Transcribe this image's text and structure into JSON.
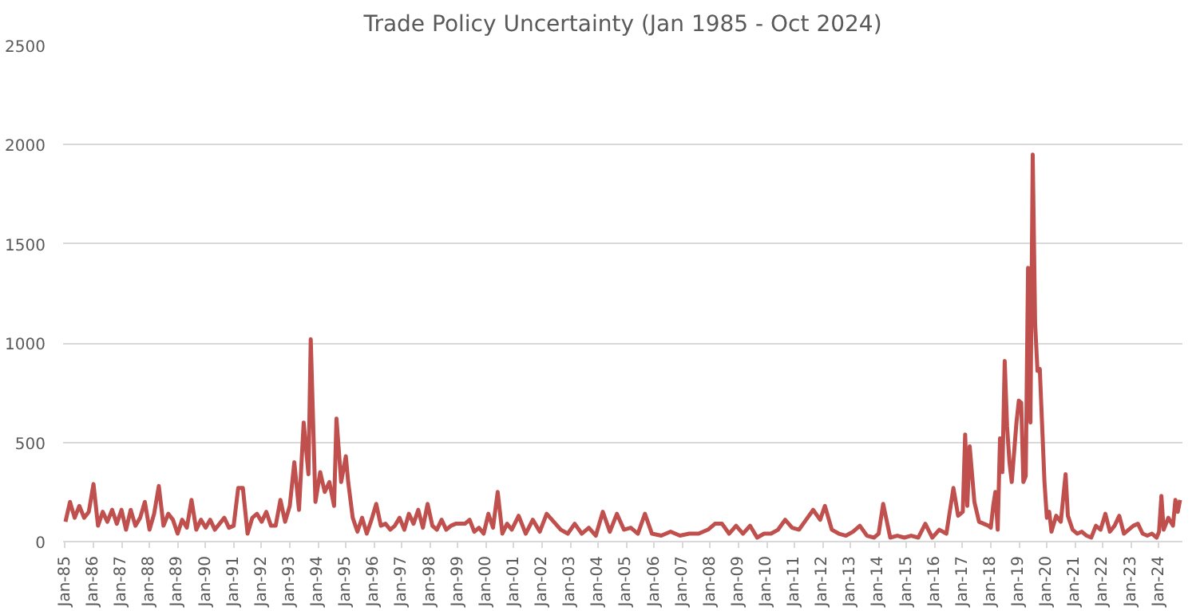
{
  "chart_data": {
    "type": "line",
    "title": "Trade Policy Uncertainty (Jan 1985 - Oct 2024)",
    "x": [
      "1985-01",
      "1985-03",
      "1985-05",
      "1985-07",
      "1985-09",
      "1985-11",
      "1986-01",
      "1986-03",
      "1986-05",
      "1986-07",
      "1986-09",
      "1986-11",
      "1987-01",
      "1987-03",
      "1987-05",
      "1987-07",
      "1987-09",
      "1987-11",
      "1988-01",
      "1988-03",
      "1988-05",
      "1988-07",
      "1988-09",
      "1988-11",
      "1989-01",
      "1989-03",
      "1989-05",
      "1989-07",
      "1989-09",
      "1989-11",
      "1990-01",
      "1990-03",
      "1990-05",
      "1990-07",
      "1990-09",
      "1990-11",
      "1991-01",
      "1991-03",
      "1991-05",
      "1991-07",
      "1991-09",
      "1991-11",
      "1992-01",
      "1992-03",
      "1992-05",
      "1992-07",
      "1992-09",
      "1992-11",
      "1993-01",
      "1993-03",
      "1993-05",
      "1993-07",
      "1993-09",
      "1993-10",
      "1993-12",
      "1994-02",
      "1994-04",
      "1994-06",
      "1994-08",
      "1994-09",
      "1994-11",
      "1995-01",
      "1995-02",
      "1995-04",
      "1995-06",
      "1995-08",
      "1995-10",
      "1995-12",
      "1996-02",
      "1996-04",
      "1996-06",
      "1996-08",
      "1996-10",
      "1996-12",
      "1997-02",
      "1997-04",
      "1997-06",
      "1997-08",
      "1997-10",
      "1997-12",
      "1998-02",
      "1998-04",
      "1998-06",
      "1998-08",
      "1998-10",
      "1998-12",
      "1999-02",
      "1999-04",
      "1999-06",
      "1999-08",
      "1999-10",
      "1999-12",
      "2000-02",
      "2000-04",
      "2000-06",
      "2000-08",
      "2000-10",
      "2000-12",
      "2001-03",
      "2001-06",
      "2001-09",
      "2001-12",
      "2002-03",
      "2002-06",
      "2002-09",
      "2002-12",
      "2003-03",
      "2003-06",
      "2003-09",
      "2003-12",
      "2004-03",
      "2004-06",
      "2004-09",
      "2004-12",
      "2005-03",
      "2005-06",
      "2005-09",
      "2005-12",
      "2006-04",
      "2006-08",
      "2006-12",
      "2007-04",
      "2007-08",
      "2007-12",
      "2008-03",
      "2008-06",
      "2008-09",
      "2008-12",
      "2009-03",
      "2009-06",
      "2009-09",
      "2009-12",
      "2010-03",
      "2010-06",
      "2010-09",
      "2010-12",
      "2011-03",
      "2011-06",
      "2011-09",
      "2011-12",
      "2012-02",
      "2012-05",
      "2012-08",
      "2012-11",
      "2013-02",
      "2013-05",
      "2013-08",
      "2013-11",
      "2014-01",
      "2014-03",
      "2014-06",
      "2014-09",
      "2014-12",
      "2015-03",
      "2015-06",
      "2015-09",
      "2015-12",
      "2016-03",
      "2016-06",
      "2016-09",
      "2016-11",
      "2017-01",
      "2017-02",
      "2017-03",
      "2017-04",
      "2017-06",
      "2017-08",
      "2017-10",
      "2017-12",
      "2018-01",
      "2018-02",
      "2018-03",
      "2018-04",
      "2018-05",
      "2018-06",
      "2018-07",
      "2018-08",
      "2018-09",
      "2018-10",
      "2018-12",
      "2019-01",
      "2019-02",
      "2019-03",
      "2019-04",
      "2019-05",
      "2019-06",
      "2019-07",
      "2019-08",
      "2019-09",
      "2019-10",
      "2019-11",
      "2019-12",
      "2020-01",
      "2020-02",
      "2020-03",
      "2020-05",
      "2020-07",
      "2020-09",
      "2020-10",
      "2020-12",
      "2021-02",
      "2021-04",
      "2021-06",
      "2021-08",
      "2021-10",
      "2021-12",
      "2022-02",
      "2022-04",
      "2022-06",
      "2022-08",
      "2022-10",
      "2022-12",
      "2023-02",
      "2023-04",
      "2023-06",
      "2023-08",
      "2023-10",
      "2023-12",
      "2024-01",
      "2024-02",
      "2024-03",
      "2024-05",
      "2024-07",
      "2024-08",
      "2024-09",
      "2024-10"
    ],
    "series": [
      {
        "color": "#c0504d",
        "values": [
          100,
          200,
          120,
          180,
          120,
          150,
          290,
          80,
          150,
          100,
          160,
          90,
          160,
          60,
          160,
          80,
          120,
          200,
          60,
          140,
          280,
          80,
          140,
          110,
          40,
          110,
          70,
          210,
          60,
          110,
          70,
          110,
          60,
          90,
          120,
          70,
          80,
          270,
          270,
          40,
          120,
          140,
          100,
          150,
          80,
          80,
          210,
          100,
          180,
          400,
          160,
          600,
          340,
          1020,
          200,
          350,
          250,
          300,
          180,
          620,
          300,
          430,
          300,
          120,
          50,
          120,
          40,
          110,
          190,
          80,
          90,
          60,
          80,
          120,
          60,
          140,
          90,
          160,
          70,
          190,
          80,
          60,
          110,
          60,
          80,
          90,
          90,
          90,
          110,
          50,
          70,
          40,
          140,
          70,
          250,
          40,
          90,
          60,
          130,
          40,
          110,
          50,
          140,
          100,
          60,
          40,
          90,
          40,
          70,
          30,
          150,
          50,
          140,
          60,
          70,
          40,
          140,
          40,
          30,
          50,
          30,
          40,
          40,
          60,
          90,
          90,
          40,
          80,
          40,
          80,
          20,
          40,
          40,
          60,
          110,
          70,
          60,
          110,
          160,
          110,
          180,
          60,
          40,
          30,
          50,
          80,
          30,
          20,
          40,
          190,
          20,
          30,
          20,
          30,
          20,
          90,
          20,
          60,
          40,
          270,
          130,
          150,
          540,
          180,
          480,
          200,
          100,
          90,
          80,
          70,
          180,
          250,
          60,
          520,
          350,
          910,
          580,
          400,
          300,
          600,
          710,
          700,
          300,
          330,
          1380,
          600,
          1950,
          1100,
          860,
          870,
          580,
          300,
          120,
          150,
          50,
          130,
          100,
          340,
          130,
          60,
          40,
          50,
          30,
          20,
          80,
          60,
          140,
          50,
          80,
          130,
          40,
          60,
          80,
          90,
          40,
          30,
          40,
          20,
          50,
          230,
          60,
          120,
          80,
          210,
          150,
          210
        ]
      }
    ],
    "xlim": [
      "1984-12",
      "2024-11"
    ],
    "xticks": [
      {
        "value": "1985-01",
        "label": "Jan-85"
      },
      {
        "value": "1986-01",
        "label": "Jan-86"
      },
      {
        "value": "1987-01",
        "label": "Jan-87"
      },
      {
        "value": "1988-01",
        "label": "Jan-88"
      },
      {
        "value": "1989-01",
        "label": "Jan-89"
      },
      {
        "value": "1990-01",
        "label": "Jan-90"
      },
      {
        "value": "1991-01",
        "label": "Jan-91"
      },
      {
        "value": "1992-01",
        "label": "Jan-92"
      },
      {
        "value": "1993-01",
        "label": "Jan-93"
      },
      {
        "value": "1994-01",
        "label": "Jan-94"
      },
      {
        "value": "1995-01",
        "label": "Jan-95"
      },
      {
        "value": "1996-01",
        "label": "Jan-96"
      },
      {
        "value": "1997-01",
        "label": "Jan-97"
      },
      {
        "value": "1998-01",
        "label": "Jan-98"
      },
      {
        "value": "1999-01",
        "label": "Jan-99"
      },
      {
        "value": "2000-01",
        "label": "Jan-00"
      },
      {
        "value": "2001-01",
        "label": "Jan-01"
      },
      {
        "value": "2002-01",
        "label": "Jan-02"
      },
      {
        "value": "2003-01",
        "label": "Jan-03"
      },
      {
        "value": "2004-01",
        "label": "Jan-04"
      },
      {
        "value": "2005-01",
        "label": "Jan-05"
      },
      {
        "value": "2006-01",
        "label": "Jan-06"
      },
      {
        "value": "2007-01",
        "label": "Jan-07"
      },
      {
        "value": "2008-01",
        "label": "Jan-08"
      },
      {
        "value": "2009-01",
        "label": "Jan-09"
      },
      {
        "value": "2010-01",
        "label": "Jan-10"
      },
      {
        "value": "2011-01",
        "label": "Jan-11"
      },
      {
        "value": "2012-01",
        "label": "Jan-12"
      },
      {
        "value": "2013-01",
        "label": "Jan-13"
      },
      {
        "value": "2014-01",
        "label": "Jan-14"
      },
      {
        "value": "2015-01",
        "label": "Jan-15"
      },
      {
        "value": "2016-01",
        "label": "Jan-16"
      },
      {
        "value": "2017-01",
        "label": "Jan-17"
      },
      {
        "value": "2018-01",
        "label": "Jan-18"
      },
      {
        "value": "2019-01",
        "label": "Jan-19"
      },
      {
        "value": "2020-01",
        "label": "Jan-20"
      },
      {
        "value": "2021-01",
        "label": "Jan-21"
      },
      {
        "value": "2022-01",
        "label": "Jan-22"
      },
      {
        "value": "2023-01",
        "label": "Jan-23"
      },
      {
        "value": "2024-01",
        "label": "Jan-24"
      }
    ],
    "ylim": [
      0,
      2500
    ],
    "yticks": [
      0,
      500,
      1000,
      1500,
      2000,
      2500
    ],
    "grid": "y",
    "marker": "none",
    "line_style": "solid"
  }
}
